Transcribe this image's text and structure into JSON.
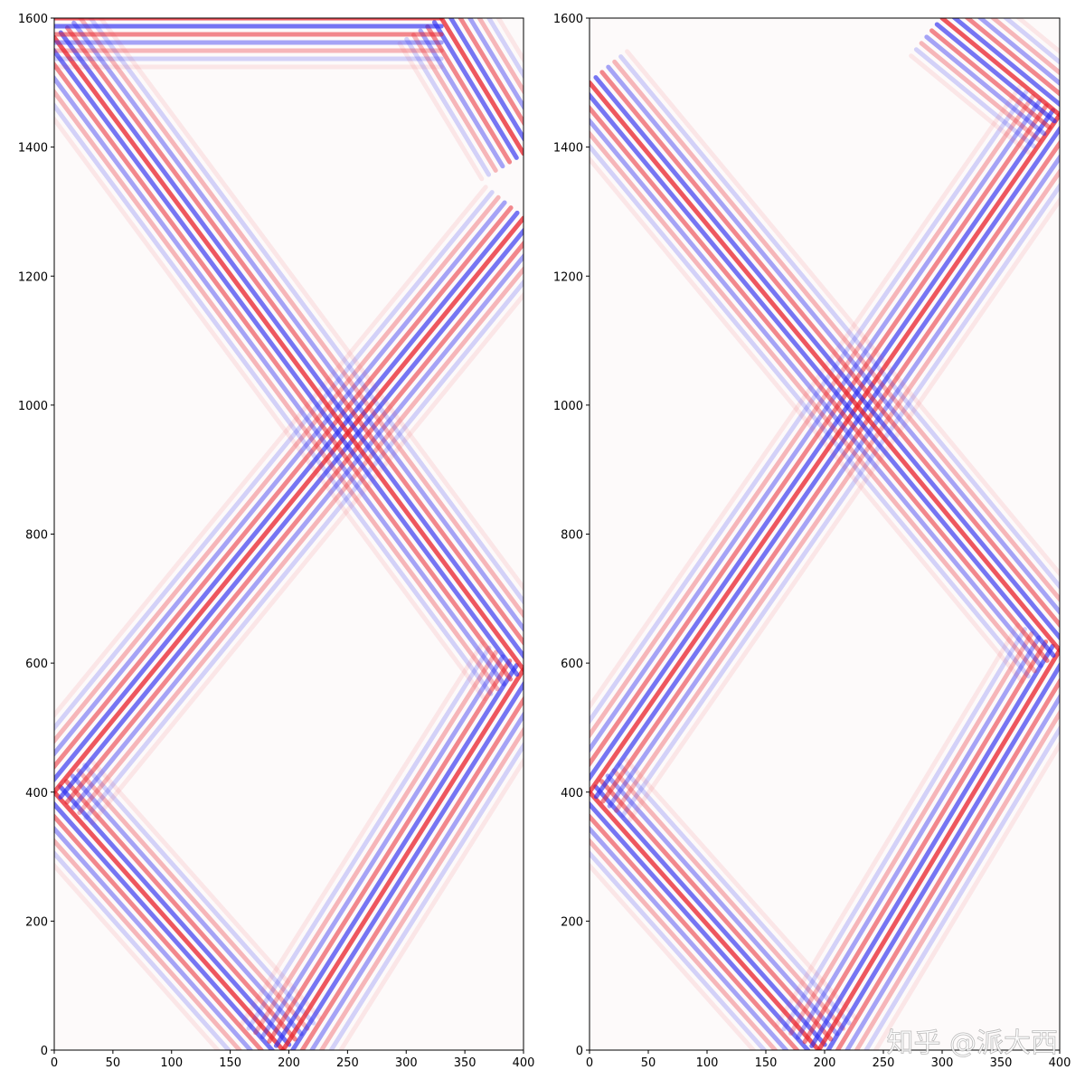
{
  "chart_data": [
    {
      "type": "heatmap",
      "colormap": "bwr",
      "xlim": [
        0,
        400
      ],
      "ylim": [
        0,
        1600
      ],
      "xticks": [
        0,
        50,
        100,
        150,
        200,
        250,
        300,
        350,
        400
      ],
      "yticks": [
        0,
        200,
        400,
        600,
        800,
        1000,
        1200,
        1400,
        1600
      ]
    },
    {
      "type": "heatmap",
      "colormap": "bwr",
      "xlim": [
        0,
        400
      ],
      "ylim": [
        0,
        1600
      ],
      "xticks": [
        0,
        50,
        100,
        150,
        200,
        250,
        300,
        350,
        400
      ],
      "yticks": [
        0,
        200,
        400,
        600,
        800,
        1000,
        1200,
        1400,
        1600
      ]
    }
  ],
  "watermark": "知乎 @派大西"
}
